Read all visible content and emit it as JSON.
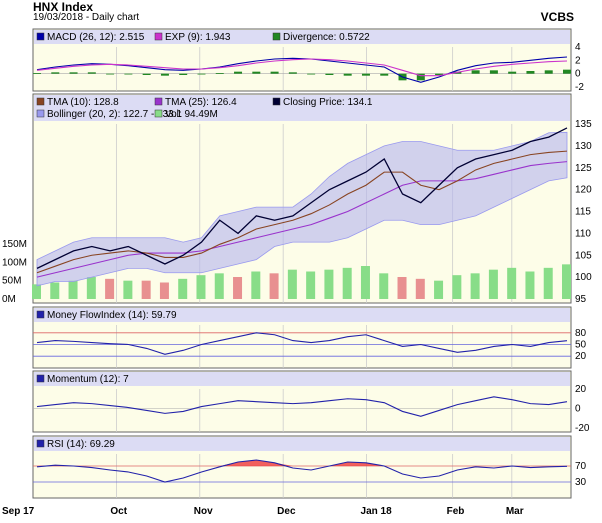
{
  "header": {
    "title": "HNX Index",
    "subtitle": "19/03/2018 - Daily chart",
    "brand": "VCBS"
  },
  "chart_data": [
    {
      "type": "line",
      "panel": "macd",
      "title": "MACD",
      "legend": [
        {
          "label": "MACD (26, 12): 2.515",
          "color": "#0000aa"
        },
        {
          "label": "EXP (9): 1.943",
          "color": "#cc33cc"
        },
        {
          "label": "Divergence: 0.5722",
          "color": "#228822"
        }
      ],
      "ylim": [
        -2,
        4
      ],
      "yticks": [
        "4",
        "2",
        "0",
        "-2"
      ],
      "series": [
        {
          "name": "MACD",
          "color": "#0000aa",
          "values": [
            0.6,
            1.0,
            1.3,
            1.5,
            1.4,
            1.2,
            0.9,
            0.6,
            0.5,
            0.7,
            1.0,
            1.5,
            1.9,
            2.2,
            2.3,
            2.2,
            1.9,
            1.6,
            1.3,
            1.0,
            -0.5,
            -1.3,
            -0.5,
            0.5,
            1.2,
            1.6,
            1.7,
            2.0,
            2.3,
            2.5
          ]
        },
        {
          "name": "EXP",
          "color": "#cc33cc",
          "values": [
            0.5,
            0.8,
            1.1,
            1.3,
            1.4,
            1.3,
            1.1,
            0.9,
            0.7,
            0.7,
            0.9,
            1.2,
            1.6,
            1.9,
            2.1,
            2.2,
            2.1,
            1.9,
            1.6,
            1.3,
            0.5,
            -0.3,
            -0.3,
            0.2,
            0.7,
            1.1,
            1.4,
            1.6,
            1.8,
            1.9
          ]
        },
        {
          "name": "Divergence",
          "color": "#228822",
          "values": [
            0.1,
            0.2,
            0.2,
            0.2,
            0.0,
            -0.1,
            -0.2,
            -0.3,
            -0.2,
            0.0,
            0.1,
            0.3,
            0.3,
            0.3,
            0.2,
            0.0,
            -0.2,
            -0.3,
            -0.3,
            -0.3,
            -1.0,
            -1.0,
            -0.2,
            0.3,
            0.5,
            0.5,
            0.3,
            0.4,
            0.5,
            0.6
          ]
        }
      ]
    },
    {
      "type": "line",
      "panel": "price",
      "title": "Price",
      "legend": [
        {
          "label": "TMA (10): 128.8",
          "color": "#884422"
        },
        {
          "label": "TMA (25): 126.4",
          "color": "#9933cc"
        },
        {
          "label": "Closing Price: 134.1",
          "color": "#000033"
        },
        {
          "label": "Bollinger (20, 2): 122.7 - 133.1",
          "color": "#9999ee"
        },
        {
          "label": "Vol: 94.49M",
          "color": "#88dd88"
        }
      ],
      "ylim": [
        95,
        135
      ],
      "yticks": [
        "135",
        "130",
        "125",
        "120",
        "115",
        "110",
        "105",
        "100",
        "95"
      ],
      "volume_ticks": [
        "150M",
        "100M",
        "50M",
        "0M"
      ],
      "series": [
        {
          "name": "Closing Price",
          "color": "#000033",
          "values": [
            102,
            104,
            106,
            107,
            106,
            107,
            105,
            103,
            105,
            108,
            113,
            110,
            114,
            113,
            114,
            117,
            120,
            122,
            124,
            127,
            119,
            117,
            121,
            125,
            127,
            128,
            129,
            131,
            132,
            134.1
          ]
        },
        {
          "name": "TMA (10)",
          "color": "#884422",
          "values": [
            101,
            102.5,
            104,
            105,
            105.5,
            106,
            105.5,
            104.5,
            104.5,
            105.5,
            107.5,
            109,
            111,
            112,
            113,
            114.5,
            116.5,
            119,
            121,
            124,
            124,
            121,
            120,
            122,
            124.5,
            126,
            127,
            128,
            128.5,
            128.8
          ]
        },
        {
          "name": "TMA (25)",
          "color": "#9933cc",
          "values": [
            100,
            101,
            102,
            103,
            104,
            105,
            105.5,
            105.5,
            105.5,
            106,
            107,
            108,
            109,
            110,
            111,
            112,
            113.5,
            115,
            117,
            119,
            121,
            122,
            122,
            122,
            122.5,
            123.5,
            124.5,
            125.5,
            126,
            126.4
          ]
        },
        {
          "name": "Bollinger Upper",
          "color": "#9999ee",
          "values": [
            104,
            106,
            108,
            109,
            109,
            109,
            109,
            109,
            108,
            109,
            114,
            115,
            116,
            116,
            116,
            119,
            123,
            126,
            128,
            130,
            131,
            131,
            130,
            129,
            129,
            129,
            130,
            131,
            133,
            133.1
          ]
        },
        {
          "name": "Bollinger Lower",
          "color": "#9999ee",
          "values": [
            98,
            99,
            99,
            100,
            101,
            102,
            102,
            101,
            101,
            101,
            102,
            103,
            104,
            107,
            108,
            108,
            108,
            109,
            111,
            113,
            113,
            112,
            112,
            113,
            114,
            116,
            118,
            120,
            122,
            122.7
          ]
        },
        {
          "name": "Volume (M)",
          "color": "#88dd88",
          "values": [
            40,
            45,
            50,
            60,
            55,
            50,
            50,
            45,
            55,
            65,
            70,
            60,
            75,
            70,
            80,
            75,
            80,
            85,
            90,
            70,
            60,
            55,
            50,
            65,
            70,
            80,
            85,
            75,
            85,
            94.49
          ]
        }
      ]
    },
    {
      "type": "line",
      "panel": "mfi",
      "title": "Money Flow Index",
      "legend": [
        {
          "label": "Money FlowIndex (14): 59.79",
          "color": "#2222aa"
        }
      ],
      "ylim": [
        0,
        100
      ],
      "yticks": [
        "80",
        "50",
        "20"
      ],
      "series": [
        {
          "name": "MFI",
          "color": "#2222aa",
          "values": [
            55,
            60,
            58,
            55,
            52,
            50,
            40,
            25,
            35,
            50,
            60,
            70,
            80,
            75,
            60,
            55,
            60,
            70,
            75,
            60,
            45,
            50,
            40,
            30,
            35,
            45,
            50,
            45,
            55,
            59.79
          ]
        }
      ]
    },
    {
      "type": "line",
      "panel": "momentum",
      "title": "Momentum",
      "legend": [
        {
          "label": "Momentum (12): 7",
          "color": "#2222aa"
        }
      ],
      "ylim": [
        -20,
        20
      ],
      "yticks": [
        "20",
        "0",
        "-20"
      ],
      "series": [
        {
          "name": "Momentum",
          "color": "#2222aa",
          "values": [
            2,
            4,
            6,
            5,
            3,
            1,
            -2,
            -5,
            -3,
            2,
            5,
            8,
            7,
            6,
            5,
            6,
            8,
            10,
            9,
            6,
            -3,
            -8,
            -2,
            4,
            8,
            12,
            9,
            5,
            4,
            7
          ]
        }
      ]
    },
    {
      "type": "line",
      "panel": "rsi",
      "title": "RSI",
      "legend": [
        {
          "label": "RSI (14): 69.29",
          "color": "#2222aa"
        }
      ],
      "ylim": [
        0,
        100
      ],
      "yticks": [
        "70",
        "30"
      ],
      "x_labels": [
        "Sep 17",
        "Oct",
        "Nov",
        "Dec",
        "Jan 18",
        "Feb",
        "Mar"
      ],
      "series": [
        {
          "name": "RSI",
          "color": "#2222aa",
          "values": [
            68,
            72,
            70,
            66,
            60,
            55,
            45,
            30,
            40,
            55,
            68,
            80,
            85,
            78,
            65,
            60,
            70,
            80,
            78,
            70,
            50,
            40,
            45,
            60,
            68,
            65,
            70,
            66,
            68,
            69.29
          ]
        }
      ]
    }
  ]
}
